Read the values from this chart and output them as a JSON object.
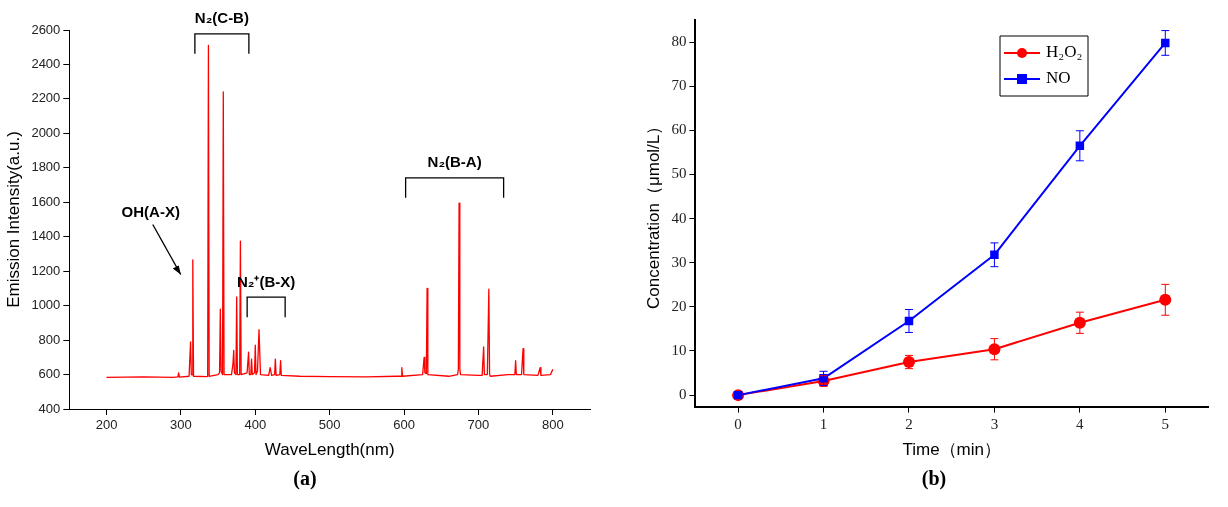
{
  "chart_data": [
    {
      "type": "line",
      "xlabel": "WaveLength(nm)",
      "ylabel": "Emission Intensity(a.u.)",
      "xlim": [
        150,
        850
      ],
      "xticks": [
        200,
        300,
        400,
        500,
        600,
        700,
        800
      ],
      "ylim": [
        400,
        2600
      ],
      "yticks": [
        400,
        600,
        800,
        1000,
        1200,
        1400,
        1600,
        1800,
        2000,
        2200,
        2400,
        2600
      ],
      "grid": false,
      "legend": false,
      "marker": "none",
      "series": [
        {
          "color": "#ff0000",
          "x": [
            200,
            250,
            290,
            296,
            297,
            298,
            311,
            313,
            314,
            315,
            316,
            317,
            335,
            336,
            337,
            338,
            350,
            352,
            353,
            354,
            356,
            357,
            358,
            368,
            370,
            371,
            372,
            374,
            375,
            376,
            379,
            380,
            381,
            389,
            391,
            392,
            394,
            395,
            396,
            399,
            400,
            401,
            403,
            405,
            407,
            418,
            420,
            422,
            426,
            427,
            428,
            433,
            434,
            435,
            460,
            500,
            550,
            590,
            596,
            597,
            598,
            625,
            627,
            628,
            630,
            631,
            632,
            660,
            672,
            673,
            674,
            675,
            676,
            700,
            705,
            707,
            708,
            712,
            714,
            715,
            716,
            740,
            749,
            750,
            751,
            758,
            760,
            761,
            780,
            783,
            784,
            797,
            800
          ],
          "values": [
            583,
            586,
            584,
            586,
            610,
            585,
            590,
            790,
            600,
            598,
            1265,
            590,
            588,
            590,
            2510,
            590,
            600,
            610,
            980,
            620,
            600,
            2240,
            600,
            600,
            660,
            740,
            610,
            600,
            1050,
            600,
            600,
            1375,
            600,
            610,
            730,
            600,
            600,
            690,
            600,
            610,
            770,
            600,
            620,
            860,
            600,
            595,
            640,
            595,
            600,
            690,
            595,
            600,
            680,
            595,
            590,
            588,
            586,
            590,
            590,
            640,
            590,
            600,
            700,
            610,
            605,
            1100,
            600,
            590,
            600,
            630,
            1595,
            630,
            600,
            595,
            595,
            760,
            600,
            600,
            1095,
            600,
            590,
            600,
            600,
            680,
            600,
            600,
            750,
            600,
            595,
            640,
            595,
            600,
            630
          ]
        }
      ],
      "annotations": [
        "OH(A-X)",
        "N₂(C-B)",
        "N₂⁺(B-X)",
        "N₂(B-A)",
        "(a)"
      ]
    },
    {
      "type": "line",
      "xlabel": "Time（min）",
      "ylabel": "Concentration（μmol/L）",
      "x": [
        0,
        1,
        2,
        3,
        4,
        5
      ],
      "xlim": [
        -0.5,
        5.5
      ],
      "xticks": [
        0,
        1,
        2,
        3,
        4,
        5
      ],
      "ylim": [
        -2.6,
        85
      ],
      "yticks": [
        0,
        10,
        20,
        30,
        40,
        50,
        60,
        70,
        80
      ],
      "grid": false,
      "legend": "top right",
      "series": [
        {
          "name": "H₂O₂",
          "color": "#ff0000",
          "marker": "circle",
          "values": [
            0,
            3.2,
            7.5,
            10.4,
            16.4,
            21.6
          ],
          "errors": [
            null,
            1.2,
            1.5,
            2.4,
            2.4,
            3.5
          ]
        },
        {
          "name": "NO",
          "color": "#0000ff",
          "marker": "square",
          "values": [
            0,
            3.8,
            16.8,
            31.8,
            56.5,
            79.8
          ],
          "errors": [
            null,
            1.6,
            2.6,
            2.7,
            3.4,
            2.8
          ]
        }
      ],
      "annotations": [
        "(b)"
      ]
    }
  ]
}
